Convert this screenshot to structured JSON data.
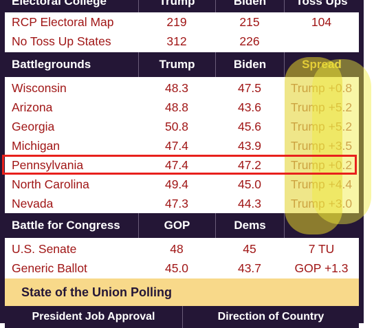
{
  "electoral": {
    "header": [
      "Electoral College",
      "Trump",
      "Biden",
      "Toss Ups"
    ],
    "rows": [
      {
        "name": "RCP Electoral Map",
        "a": "219",
        "b": "215",
        "c": "104"
      },
      {
        "name": "No Toss Up States",
        "a": "312",
        "b": "226",
        "c": ""
      }
    ]
  },
  "battlegrounds": {
    "header": [
      "Battlegrounds",
      "Trump",
      "Biden",
      "Spread"
    ],
    "rows": [
      {
        "name": "Wisconsin",
        "a": "48.3",
        "b": "47.5",
        "c": "Trump +0.8"
      },
      {
        "name": "Arizona",
        "a": "48.8",
        "b": "43.6",
        "c": "Trump +5.2"
      },
      {
        "name": "Georgia",
        "a": "50.8",
        "b": "45.6",
        "c": "Trump +5.2"
      },
      {
        "name": "Michigan",
        "a": "47.4",
        "b": "43.9",
        "c": "Trump +3.5"
      },
      {
        "name": "Pennsylvania",
        "a": "47.4",
        "b": "47.2",
        "c": "Trump +0.2"
      },
      {
        "name": "North Carolina",
        "a": "49.4",
        "b": "45.0",
        "c": "Trump +4.4"
      },
      {
        "name": "Nevada",
        "a": "47.3",
        "b": "44.3",
        "c": "Trump +3.0"
      }
    ]
  },
  "congress": {
    "header": [
      "Battle for Congress",
      "GOP",
      "Dems",
      ""
    ],
    "rows": [
      {
        "name": "U.S. Senate",
        "a": "48",
        "b": "45",
        "c": "7 TU"
      },
      {
        "name": "Generic Ballot",
        "a": "45.0",
        "b": "43.7",
        "c": "GOP +1.3"
      }
    ]
  },
  "banner": {
    "title": "State of the Union Polling"
  },
  "bottom": {
    "left": "President Job Approval",
    "right": "Direction of Country"
  },
  "colors": {
    "header_bg": "#241636",
    "value_red": "#a01616",
    "banner_bg": "#f8d98a",
    "highlight_red": "#e8201c",
    "marker_yellow": "#e1d228"
  }
}
